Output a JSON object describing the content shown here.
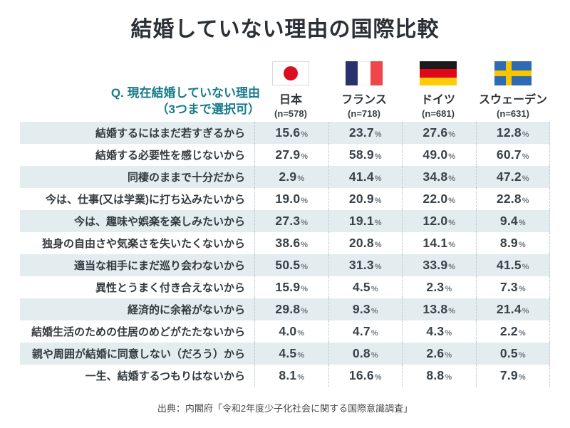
{
  "page": {
    "title": "結婚していない理由の国際比較",
    "source": "出典：内閣府「令和2年度少子化社会に関する国際意識調査」"
  },
  "question": {
    "line1": "Q. 現在結婚していない理由",
    "line2": "（3つまで選択可）"
  },
  "countries": [
    {
      "name": "日本",
      "sample": "(n=578)"
    },
    {
      "name": "フランス",
      "sample": "(n=718)"
    },
    {
      "name": "ドイツ",
      "sample": "(n=681)"
    },
    {
      "name": "スウェーデン",
      "sample": "(n=631)"
    }
  ],
  "chart_data": {
    "type": "table",
    "title": "結婚していない理由の国際比較",
    "unit": "%",
    "categories": [
      "結婚するにはまだ若すぎるから",
      "結婚する必要性を感じないから",
      "同棲のままで十分だから",
      "今は、仕事(又は学業)に打ち込みたいから",
      "今は、趣味や娯楽を楽しみたいから",
      "独身の自由さや気楽さを失いたくないから",
      "適当な相手にまだ巡り会わないから",
      "異性とうまく付き合えないから",
      "経済的に余裕がないから",
      "結婚生活のための住居のめどがたたないから",
      "親や周囲が結婚に同意しない（だろう）から",
      "一生、結婚するつもりはないから"
    ],
    "series": [
      {
        "name": "日本",
        "n": 578,
        "values": [
          15.6,
          27.9,
          2.9,
          19.0,
          27.3,
          38.6,
          50.5,
          15.9,
          29.8,
          4.0,
          4.5,
          8.1
        ]
      },
      {
        "name": "フランス",
        "n": 718,
        "values": [
          23.7,
          58.9,
          41.4,
          20.9,
          19.1,
          20.8,
          31.3,
          4.5,
          9.3,
          4.7,
          0.8,
          16.6
        ]
      },
      {
        "name": "ドイツ",
        "n": 681,
        "values": [
          27.6,
          49.0,
          34.8,
          22.0,
          12.0,
          14.1,
          33.9,
          2.3,
          13.8,
          4.3,
          2.6,
          8.8
        ]
      },
      {
        "name": "スウェーデン",
        "n": 631,
        "values": [
          12.8,
          60.7,
          47.2,
          22.8,
          9.4,
          8.9,
          41.5,
          7.3,
          21.4,
          2.2,
          0.5,
          7.9
        ]
      }
    ]
  },
  "colors": {
    "accent_teal": "#187b8c",
    "row_alt_bg": "#e3edf0",
    "title_text": "#2b3036",
    "value_text": "#394249",
    "percent_text": "#6f787d",
    "dashed_divider": "#bfccd2",
    "japan_red": "#d8101f",
    "france_blue": "#28336e",
    "france_red": "#ef4649",
    "germany_black": "#1b1b1b",
    "germany_red": "#e1071a",
    "germany_gold": "#ffcc06",
    "sweden_blue": "#2e6bb2",
    "sweden_yellow": "#f7c600"
  }
}
